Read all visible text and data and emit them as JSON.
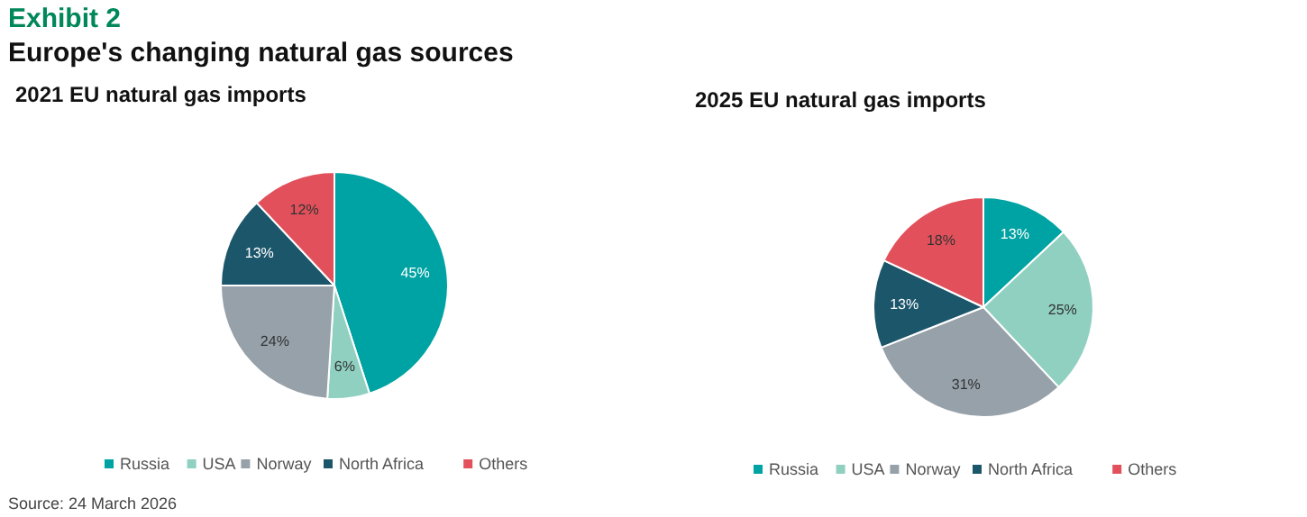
{
  "chart_data": [
    {
      "type": "other",
      "title": "Exhibit 2",
      "subtitle": "Europe's changing natural gas sources",
      "annotations": [
        "Source: 24 March 2026"
      ]
    },
    {
      "type": "pie",
      "title": "2021 EU natural gas imports",
      "categories": [
        "Russia",
        "USA",
        "Norway",
        "North Africa",
        "Others"
      ],
      "values": [
        45,
        6,
        24,
        13,
        12
      ],
      "value_labels": [
        "45%",
        "6%",
        "24%",
        "13%",
        "12%"
      ],
      "colors": [
        "#00a3a3",
        "#8fd0c0",
        "#97a1a9",
        "#1c566b",
        "#e2515b"
      ],
      "legend": "bottom"
    },
    {
      "type": "pie",
      "title": "2025 EU natural gas imports",
      "categories": [
        "Russia",
        "USA",
        "Norway",
        "North Africa",
        "Others"
      ],
      "values": [
        13,
        25,
        31,
        13,
        18
      ],
      "value_labels": [
        "13%",
        "25%",
        "31%",
        "13%",
        "18%"
      ],
      "colors": [
        "#00a3a3",
        "#8fd0c0",
        "#97a1a9",
        "#1c566b",
        "#e2515b"
      ],
      "legend": "bottom"
    }
  ]
}
